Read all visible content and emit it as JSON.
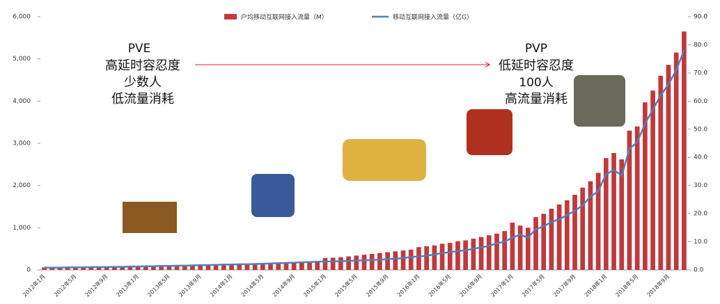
{
  "chart_data": {
    "type": "bar_line",
    "categories": [
      "2012年1月",
      null,
      null,
      null,
      "2012年5月",
      null,
      null,
      null,
      "2012年9月",
      null,
      null,
      null,
      "2013年1月",
      null,
      null,
      null,
      "2013年5月",
      null,
      null,
      null,
      "2013年9月",
      null,
      null,
      null,
      "2014年1月",
      null,
      null,
      null,
      "2014年5月",
      null,
      null,
      null,
      "2014年9月",
      null,
      null,
      null,
      "2015年1月",
      null,
      null,
      null,
      "2015年5月",
      null,
      null,
      null,
      "2015年9月",
      null,
      null,
      null,
      "2016年1月",
      null,
      null,
      null,
      "2016年5月",
      null,
      null,
      null,
      "2016年9月",
      null,
      null,
      null,
      "2017年1月",
      null,
      null,
      null,
      "2017年5月",
      null,
      null,
      null,
      "2017年9月",
      null,
      null,
      null,
      "2018年1月",
      null,
      null,
      null,
      "2018年5月",
      null,
      null,
      null,
      "2018年9月",
      null,
      null
    ],
    "series": [
      {
        "name": "户均移动互联网接入流量（M）",
        "color": "#c0393b",
        "kind": "bar",
        "values": [
          60,
          62,
          64,
          66,
          68,
          70,
          72,
          74,
          76,
          78,
          80,
          82,
          88,
          92,
          96,
          100,
          104,
          108,
          112,
          116,
          120,
          124,
          128,
          132,
          138,
          142,
          148,
          152,
          158,
          162,
          168,
          172,
          178,
          184,
          190,
          196,
          280,
          290,
          300,
          320,
          340,
          360,
          380,
          400,
          420,
          440,
          460,
          480,
          540,
          560,
          580,
          620,
          640,
          680,
          700,
          740,
          780,
          820,
          860,
          920,
          1120,
          1050,
          1000,
          1250,
          1330,
          1450,
          1550,
          1650,
          1780,
          1950,
          2100,
          2300,
          2650,
          2770,
          2620,
          3300,
          3400,
          3970,
          4250,
          4600,
          4860,
          5150,
          5650
        ]
      },
      {
        "name": "移动互联网接入流量（亿G）",
        "color": "#4f7fbd",
        "kind": "line",
        "axis": "y2",
        "values": [
          0.8,
          0.8,
          0.8,
          0.9,
          0.9,
          0.9,
          1.0,
          1.0,
          1.0,
          1.1,
          1.1,
          1.2,
          1.2,
          1.3,
          1.3,
          1.4,
          1.4,
          1.5,
          1.5,
          1.6,
          1.7,
          1.7,
          1.8,
          1.9,
          1.9,
          2.0,
          2.0,
          2.1,
          2.2,
          2.3,
          2.4,
          2.5,
          2.6,
          2.7,
          2.8,
          2.9,
          3.0,
          3.0,
          3.1,
          3.2,
          3.3,
          3.4,
          3.5,
          3.6,
          3.8,
          4.0,
          4.2,
          4.6,
          4.8,
          5.0,
          5.5,
          6.0,
          6.3,
          6.7,
          7.0,
          7.5,
          8.0,
          8.5,
          9.5,
          10.0,
          11.5,
          12.5,
          11.5,
          14.5,
          15.5,
          17,
          18,
          19.5,
          21,
          23,
          26,
          28,
          34,
          35.5,
          33.5,
          43,
          45.5,
          52,
          57,
          62,
          66,
          71,
          78
        ]
      }
    ],
    "ylim": [
      0,
      6000
    ],
    "yticks": [
      0,
      {
        "value": 1000,
        "label": "1,000"
      },
      {
        "value": 2000,
        "label": "2,000"
      },
      {
        "value": 3000,
        "label": "3,000"
      },
      {
        "value": 4000,
        "label": "4,000"
      },
      {
        "value": 5000,
        "label": "5,000"
      },
      {
        "value": 6000,
        "label": "6,000"
      }
    ],
    "y2lim": [
      0,
      90
    ],
    "y2ticks": [
      {
        "value": 0,
        "label": "0.0"
      },
      {
        "value": 10,
        "label": "10.0"
      },
      {
        "value": 20,
        "label": "20.0"
      },
      {
        "value": 30,
        "label": "30.0"
      },
      {
        "value": 40,
        "label": "40.0"
      },
      {
        "value": 50,
        "label": "50.0"
      },
      {
        "value": 60,
        "label": "60.0"
      },
      {
        "value": 70,
        "label": "70.0"
      },
      {
        "value": 80,
        "label": "80.0"
      },
      {
        "value": 90,
        "label": "90.0"
      }
    ],
    "legend": "top",
    "annotations": [
      "PVE",
      "高延时容忍度",
      "少数人",
      "低流量消耗",
      "PVP",
      "低延时容忍度",
      "100人",
      "高流量消耗"
    ]
  }
}
